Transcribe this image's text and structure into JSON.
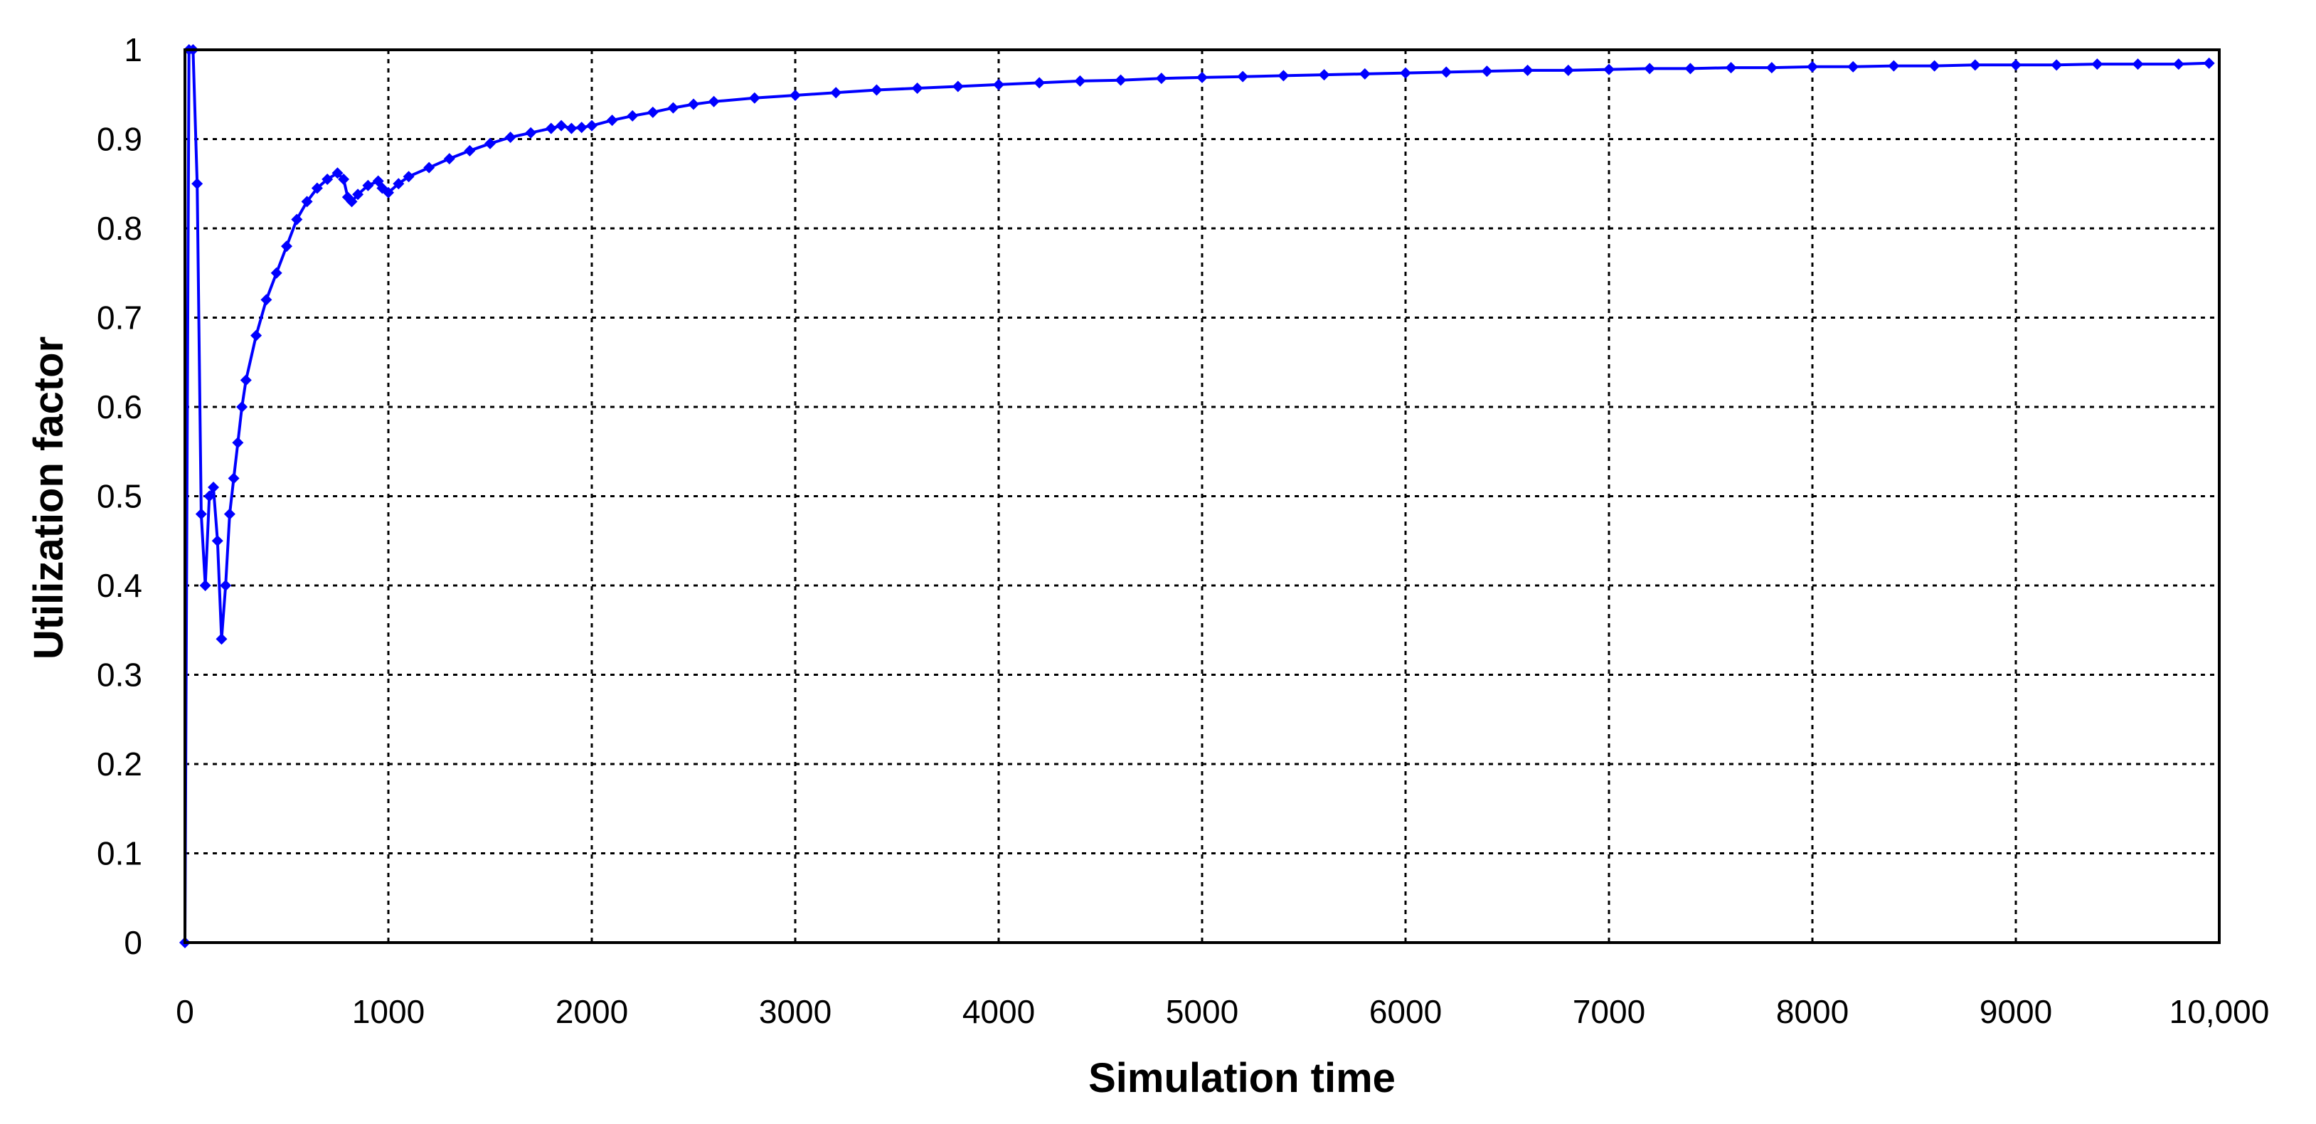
{
  "chart_data": {
    "type": "line",
    "title": "",
    "xlabel": "Simulation time",
    "ylabel": "Utilization  factor",
    "xlim": [
      0,
      10000
    ],
    "ylim": [
      0,
      1
    ],
    "x_ticks": [
      0,
      1000,
      2000,
      3000,
      4000,
      5000,
      6000,
      7000,
      8000,
      9000,
      10000
    ],
    "x_tick_labels": [
      "0",
      "1000",
      "2000",
      "3000",
      "4000",
      "5000",
      "6000",
      "7000",
      "8000",
      "9000",
      "10,000"
    ],
    "y_ticks": [
      0,
      0.1,
      0.2,
      0.3,
      0.4,
      0.5,
      0.6,
      0.7,
      0.8,
      0.9,
      1
    ],
    "y_tick_labels": [
      "0",
      "0.1",
      "0.2",
      "0.3",
      "0.4",
      "0.5",
      "0.6",
      "0.7",
      "0.8",
      "0.9",
      "1"
    ],
    "grid": true,
    "grid_style": "dotted",
    "legend": "none",
    "series_color": "#0000ff",
    "marker": "diamond",
    "series": [
      {
        "x": [
          0,
          20,
          40,
          60,
          80,
          100,
          120,
          140,
          160,
          180,
          200,
          220,
          240,
          260,
          280,
          300,
          350,
          400,
          450,
          500,
          550,
          600,
          650,
          700,
          750,
          780,
          800,
          820,
          850,
          900,
          950,
          970,
          1000,
          1050,
          1100,
          1200,
          1300,
          1400,
          1500,
          1600,
          1700,
          1800,
          1850,
          1900,
          1950,
          2000,
          2100,
          2200,
          2300,
          2400,
          2500,
          2600,
          2800,
          3000,
          3200,
          3400,
          3600,
          3800,
          4000,
          4200,
          4400,
          4600,
          4800,
          5000,
          5200,
          5400,
          5600,
          5800,
          6000,
          6200,
          6400,
          6600,
          6800,
          7000,
          7200,
          7400,
          7600,
          7800,
          8000,
          8200,
          8400,
          8600,
          8800,
          9000,
          9200,
          9400,
          9600,
          9800,
          9950
        ],
        "y": [
          0,
          1,
          1,
          0.85,
          0.48,
          0.4,
          0.5,
          0.51,
          0.45,
          0.34,
          0.4,
          0.48,
          0.52,
          0.56,
          0.6,
          0.63,
          0.68,
          0.72,
          0.75,
          0.78,
          0.81,
          0.83,
          0.845,
          0.855,
          0.862,
          0.855,
          0.835,
          0.83,
          0.838,
          0.848,
          0.853,
          0.845,
          0.84,
          0.85,
          0.858,
          0.868,
          0.878,
          0.887,
          0.895,
          0.902,
          0.907,
          0.912,
          0.915,
          0.912,
          0.913,
          0.915,
          0.921,
          0.926,
          0.93,
          0.935,
          0.939,
          0.942,
          0.946,
          0.949,
          0.952,
          0.955,
          0.957,
          0.959,
          0.961,
          0.963,
          0.965,
          0.966,
          0.968,
          0.969,
          0.97,
          0.971,
          0.972,
          0.973,
          0.974,
          0.975,
          0.976,
          0.977,
          0.977,
          0.978,
          0.979,
          0.979,
          0.98,
          0.98,
          0.981,
          0.981,
          0.982,
          0.982,
          0.983,
          0.983,
          0.983,
          0.984,
          0.984,
          0.984,
          0.985
        ]
      }
    ]
  }
}
